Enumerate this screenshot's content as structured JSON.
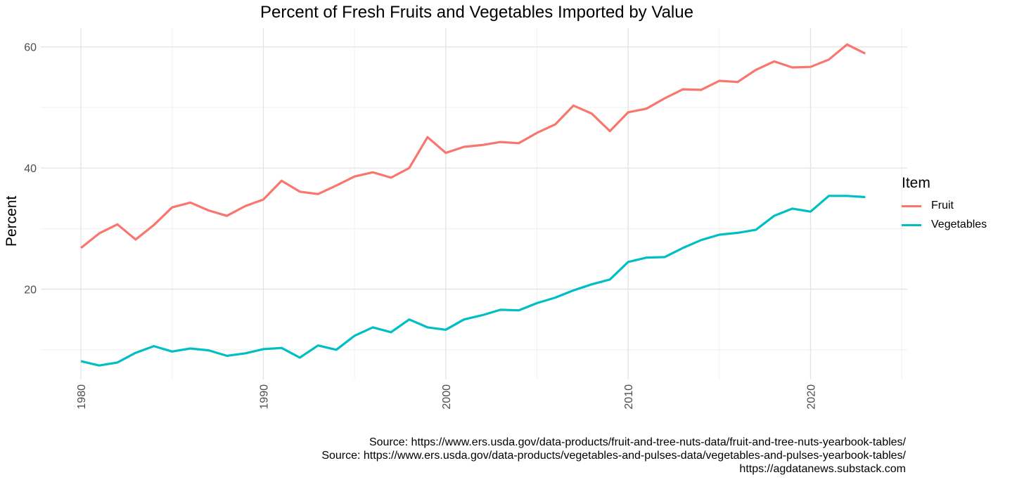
{
  "chart_data": {
    "type": "line",
    "title": "Percent of Fresh Fruits and Vegetables Imported by Value",
    "xlabel": "",
    "ylabel": "Percent",
    "xlim": [
      1977.8,
      2025.3
    ],
    "ylim": [
      5.1,
      63.1
    ],
    "x_ticks": [
      1980,
      1990,
      2000,
      2010,
      2020
    ],
    "y_ticks": [
      20,
      40,
      60
    ],
    "grid": true,
    "legend": {
      "title": "Item",
      "placement": "right"
    },
    "x": [
      1980,
      1981,
      1982,
      1983,
      1984,
      1985,
      1986,
      1987,
      1988,
      1989,
      1990,
      1991,
      1992,
      1993,
      1994,
      1995,
      1996,
      1997,
      1998,
      1999,
      2000,
      2001,
      2002,
      2003,
      2004,
      2005,
      2006,
      2007,
      2008,
      2009,
      2010,
      2011,
      2012,
      2013,
      2014,
      2015,
      2016,
      2017,
      2018,
      2019,
      2020,
      2021,
      2022,
      2023
    ],
    "series": [
      {
        "name": "Fruit",
        "color": "#F8766D",
        "values": [
          26.8,
          29.2,
          30.7,
          28.2,
          30.6,
          33.5,
          34.3,
          33.0,
          32.1,
          33.7,
          34.8,
          37.9,
          36.1,
          35.7,
          37.1,
          38.6,
          39.3,
          38.4,
          40.0,
          45.1,
          42.5,
          43.5,
          43.8,
          44.3,
          44.1,
          45.8,
          47.2,
          50.3,
          49.0,
          46.1,
          49.2,
          49.8,
          51.5,
          53.0,
          52.9,
          54.4,
          54.2,
          56.2,
          57.6,
          56.6,
          56.7,
          57.9,
          60.4,
          58.9
        ]
      },
      {
        "name": "Vegetables",
        "color": "#00BFC4",
        "values": [
          8.1,
          7.4,
          7.9,
          9.5,
          10.6,
          9.7,
          10.2,
          9.9,
          9.0,
          9.4,
          10.1,
          10.3,
          8.7,
          10.7,
          10.0,
          12.3,
          13.7,
          12.9,
          15.0,
          13.7,
          13.3,
          15.0,
          15.7,
          16.6,
          16.5,
          17.7,
          18.6,
          19.8,
          20.8,
          21.6,
          24.5,
          25.2,
          25.3,
          26.8,
          28.1,
          29.0,
          29.3,
          29.8,
          32.1,
          33.3,
          32.8,
          35.4,
          35.4,
          35.2
        ]
      }
    ],
    "captions": [
      "Source: https://www.ers.usda.gov/data-products/fruit-and-tree-nuts-data/fruit-and-tree-nuts-yearbook-tables/",
      "Source: https://www.ers.usda.gov/data-products/vegetables-and-pulses-data/vegetables-and-pulses-yearbook-tables/",
      "https://agdatanews.substack.com"
    ]
  }
}
